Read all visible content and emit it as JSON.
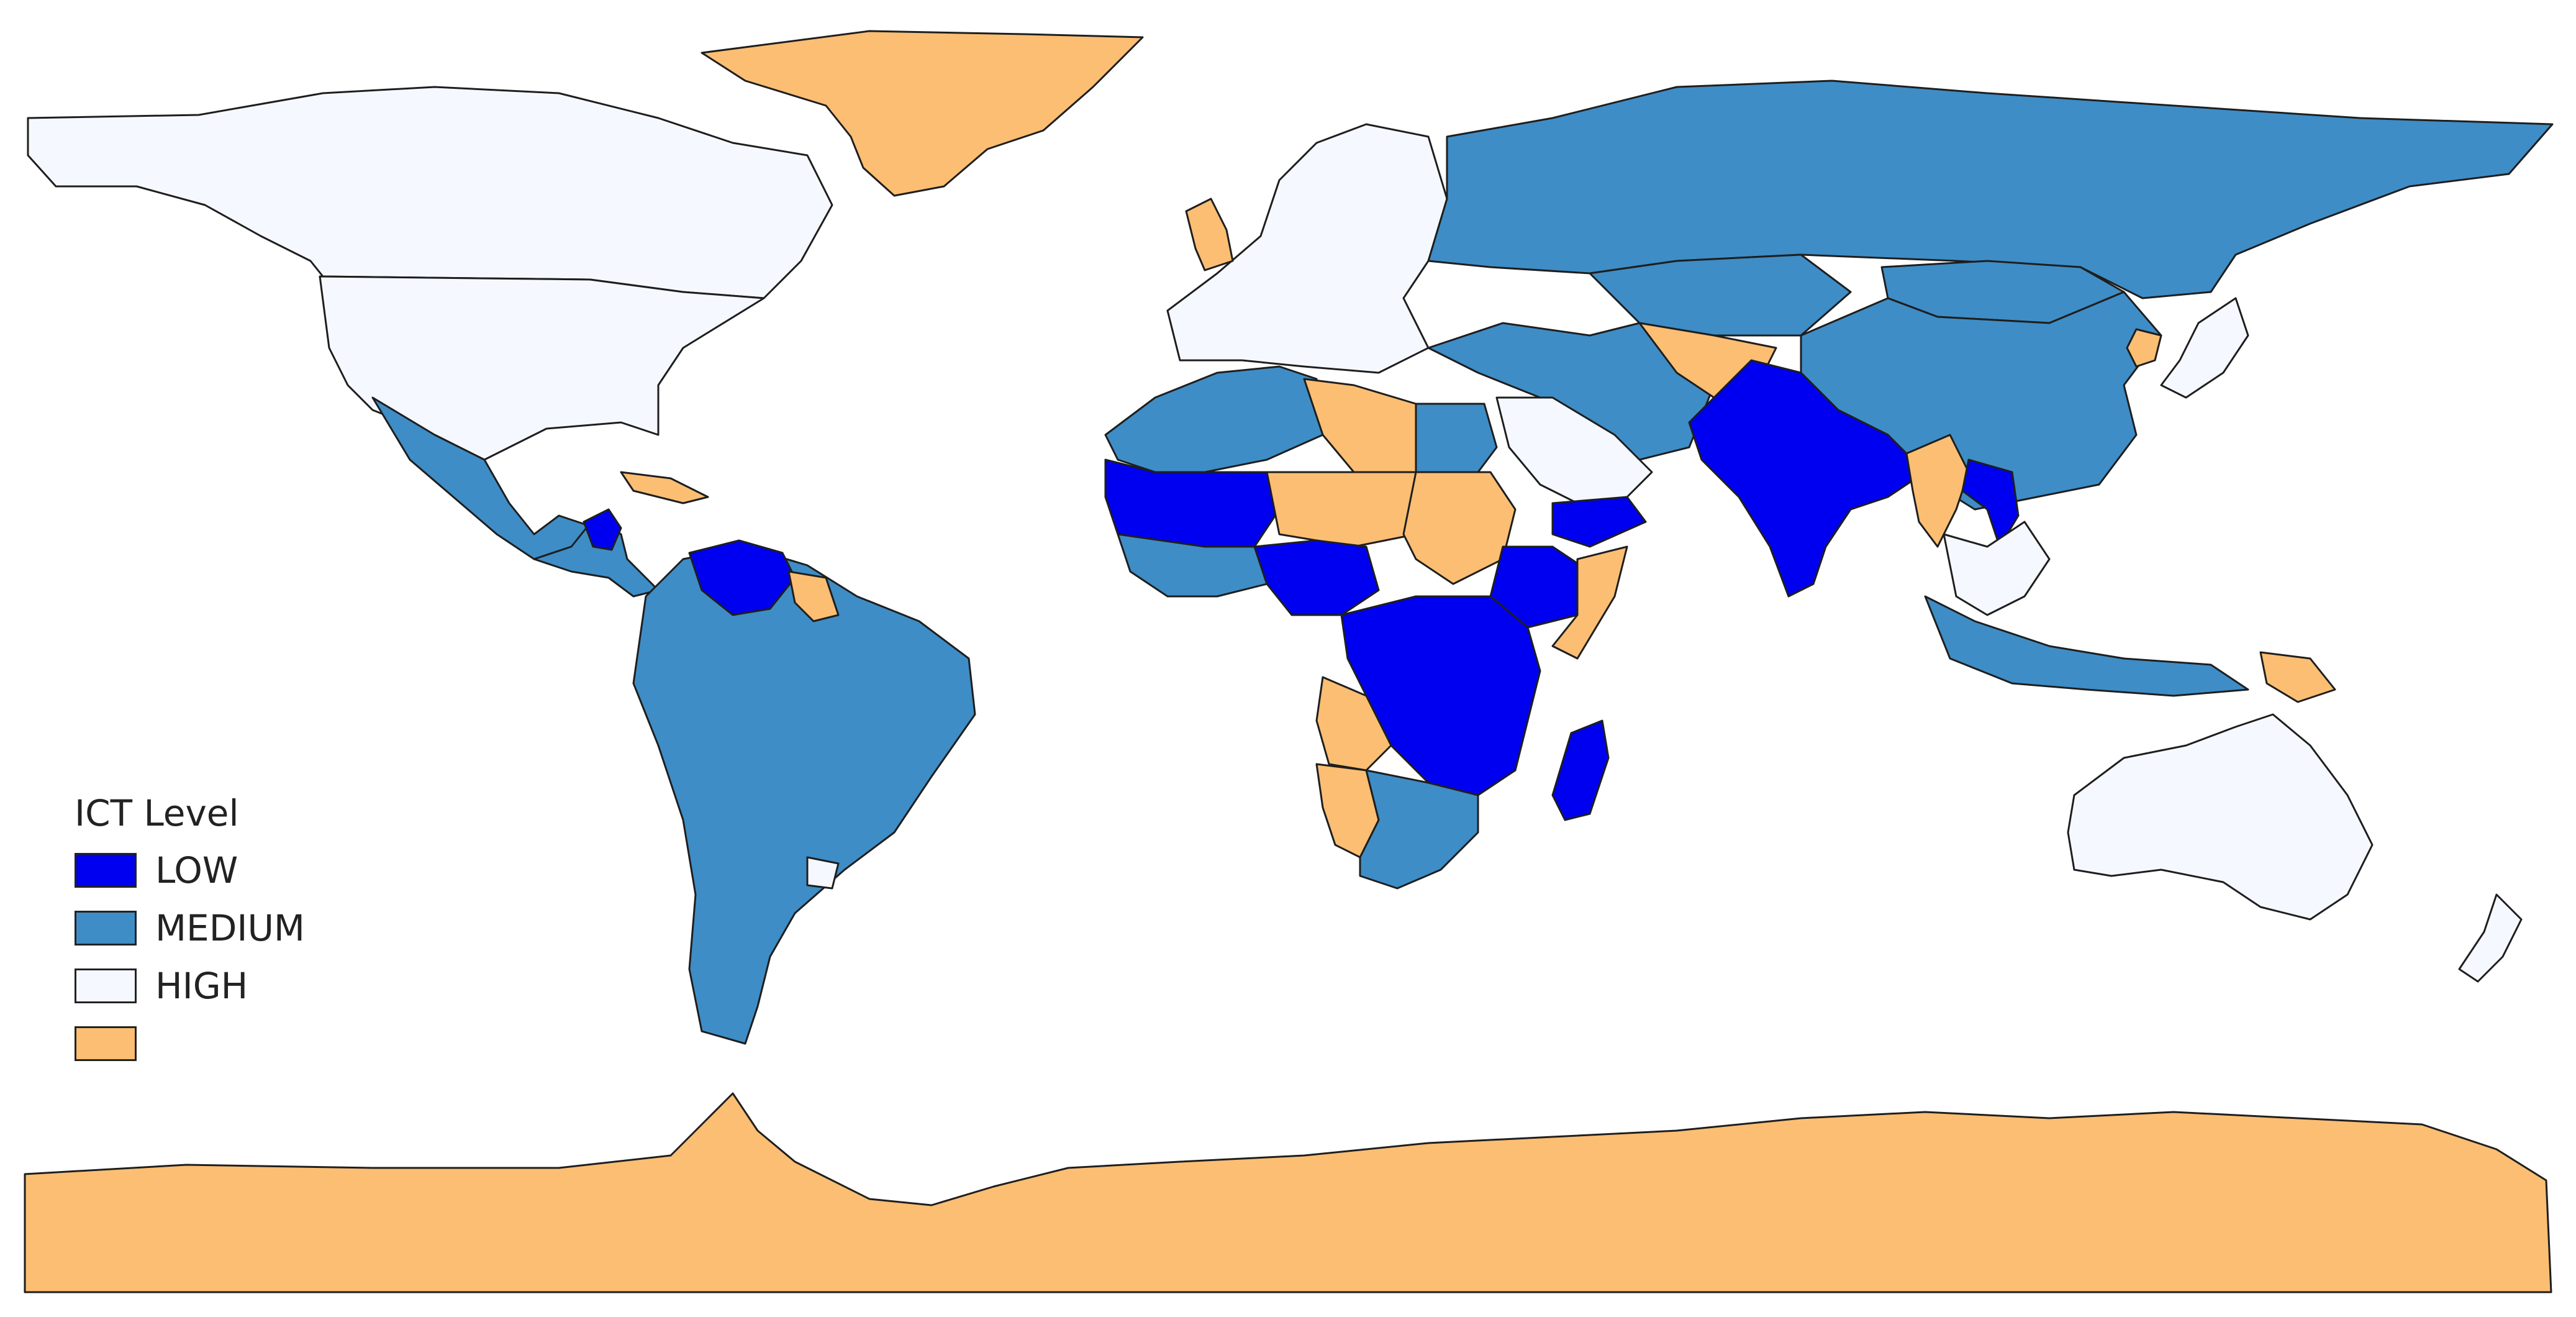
{
  "colors": {
    "low": "#0000f0",
    "medium": "#3e8dc6",
    "high": "#f5f9ff",
    "nodata": "#fbbe73",
    "border": "#1e1e1e"
  },
  "legend": {
    "title": "ICT Level",
    "items": [
      {
        "key": "low",
        "label": "LOW",
        "color": "#0000f0"
      },
      {
        "key": "medium",
        "label": "MEDIUM",
        "color": "#3e8dc6"
      },
      {
        "key": "high",
        "label": "HIGH",
        "color": "#f5f9ff"
      },
      {
        "key": "nodata",
        "label": "",
        "color": "#fbbe73"
      }
    ]
  },
  "regions": [
    {
      "name": "canada-alaska",
      "level": "high"
    },
    {
      "name": "united-states",
      "level": "high"
    },
    {
      "name": "greenland",
      "level": "nodata"
    },
    {
      "name": "mexico",
      "level": "medium"
    },
    {
      "name": "central-america",
      "level": "medium"
    },
    {
      "name": "honduras",
      "level": "low"
    },
    {
      "name": "cuba",
      "level": "nodata"
    },
    {
      "name": "venezuela",
      "level": "low"
    },
    {
      "name": "guyana-suriname",
      "level": "nodata"
    },
    {
      "name": "south-america",
      "level": "medium"
    },
    {
      "name": "uruguay",
      "level": "high"
    },
    {
      "name": "europe-west",
      "level": "high"
    },
    {
      "name": "united-kingdom",
      "level": "nodata"
    },
    {
      "name": "russia",
      "level": "medium"
    },
    {
      "name": "kazakhstan",
      "level": "medium"
    },
    {
      "name": "mongolia",
      "level": "medium"
    },
    {
      "name": "china",
      "level": "medium"
    },
    {
      "name": "iran-turkey",
      "level": "medium"
    },
    {
      "name": "afghanistan-iraq",
      "level": "nodata"
    },
    {
      "name": "saudi-arabia",
      "level": "high"
    },
    {
      "name": "yemen",
      "level": "low"
    },
    {
      "name": "south-asia",
      "level": "low"
    },
    {
      "name": "myanmar",
      "level": "nodata"
    },
    {
      "name": "laos",
      "level": "low"
    },
    {
      "name": "southeast-asia",
      "level": "high"
    },
    {
      "name": "indonesia",
      "level": "medium"
    },
    {
      "name": "papua-new-guinea",
      "level": "nodata"
    },
    {
      "name": "japan",
      "level": "high"
    },
    {
      "name": "north-korea",
      "level": "nodata"
    },
    {
      "name": "australia",
      "level": "high"
    },
    {
      "name": "new-zealand",
      "level": "high"
    },
    {
      "name": "north-africa",
      "level": "medium"
    },
    {
      "name": "libya",
      "level": "nodata"
    },
    {
      "name": "egypt",
      "level": "medium"
    },
    {
      "name": "west-africa-sahel",
      "level": "low"
    },
    {
      "name": "niger-chad",
      "level": "nodata"
    },
    {
      "name": "sudan",
      "level": "nodata"
    },
    {
      "name": "west-africa-coast",
      "level": "medium"
    },
    {
      "name": "nigeria",
      "level": "low"
    },
    {
      "name": "ethiopia",
      "level": "low"
    },
    {
      "name": "somalia",
      "level": "nodata"
    },
    {
      "name": "central-africa",
      "level": "low"
    },
    {
      "name": "angola",
      "level": "nodata"
    },
    {
      "name": "namibia",
      "level": "nodata"
    },
    {
      "name": "southern-africa",
      "level": "medium"
    },
    {
      "name": "madagascar",
      "level": "low"
    },
    {
      "name": "antarctica",
      "level": "nodata"
    }
  ]
}
